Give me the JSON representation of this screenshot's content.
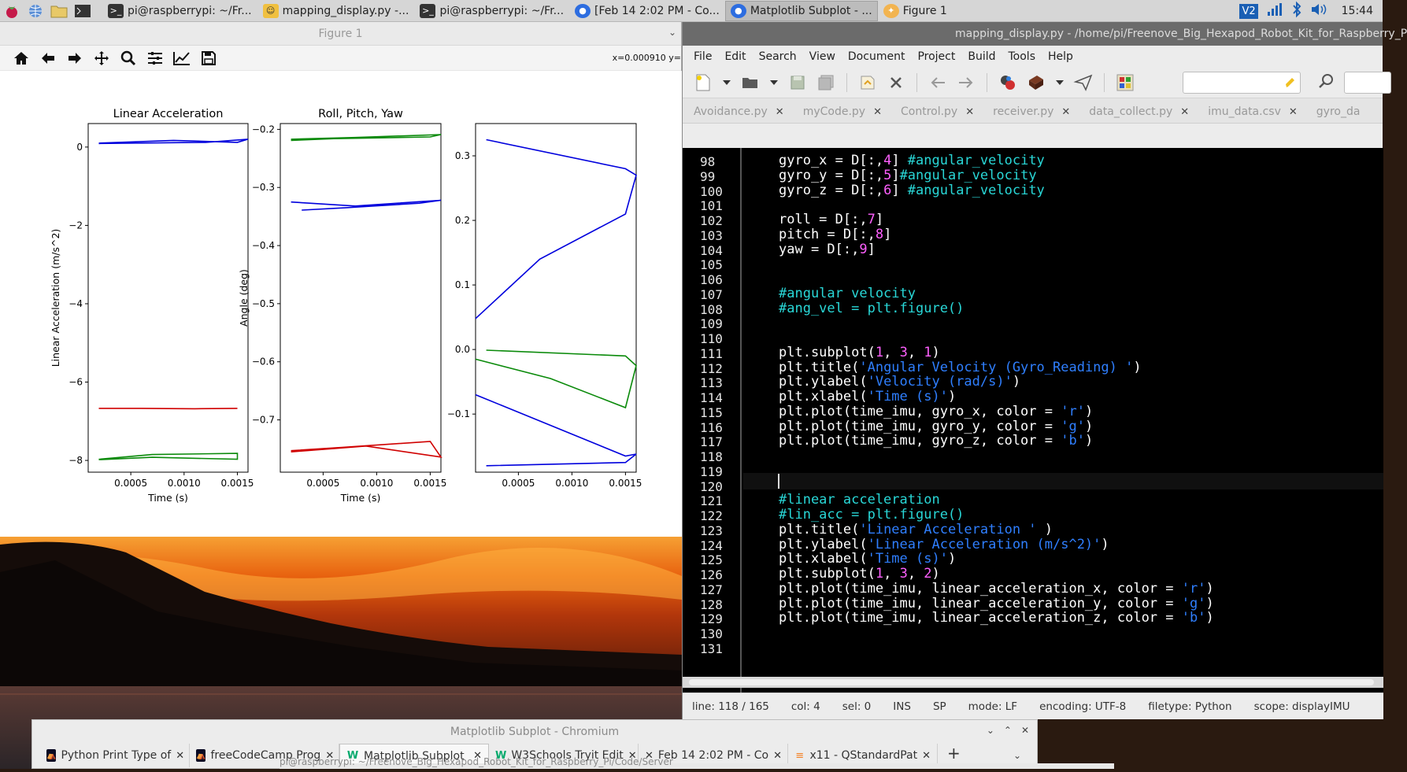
{
  "taskbar": {
    "buttons": [
      {
        "label": "pi@raspberrypi: ~/Fr...",
        "icon": "terminal-icon"
      },
      {
        "label": "mapping_display.py -...",
        "icon": "geany-icon"
      },
      {
        "label": "pi@raspberrypi: ~/Fr...",
        "icon": "terminal-icon"
      },
      {
        "label": "[Feb 14 2:02 PM - Co...",
        "icon": "chromium-icon"
      },
      {
        "label": "Matplotlib Subplot - ...",
        "icon": "chromium-icon"
      },
      {
        "label": "Figure 1",
        "icon": "matplotlib-icon"
      }
    ],
    "vnc_label": "V2",
    "clock": "15:44"
  },
  "figure": {
    "title": "Figure 1",
    "coord_readout": "x=0.000910 y=",
    "tools": [
      "home-icon",
      "back-icon",
      "forward-icon",
      "pan-icon",
      "zoom-icon",
      "configure-subplots-icon",
      "edit-axis-icon",
      "save-icon"
    ]
  },
  "chart_data": [
    {
      "type": "line",
      "title": "Linear Acceleration",
      "xlabel": "Time (s)",
      "ylabel": "Linear Acceleration (m/s^2)",
      "xlim": [
        0.0001,
        0.0016
      ],
      "ylim": [
        -8.3,
        0.6
      ],
      "xticks": [
        "0.0005",
        "0.0010",
        "0.0015"
      ],
      "yticks": [
        "0",
        "−2",
        "−4",
        "−6",
        "−8"
      ],
      "series": [
        {
          "color": "#d00000",
          "x": [
            0.0002,
            0.0006,
            0.0011,
            0.0015
          ],
          "values": [
            -6.67,
            -6.67,
            -6.68,
            -6.67
          ]
        },
        {
          "color": "#0a8a0a",
          "x": [
            0.0002,
            0.0007,
            0.0015,
            0.0015,
            0.0007,
            0.0002
          ],
          "values": [
            -7.97,
            -7.85,
            -7.82,
            -7.97,
            -7.92,
            -7.98
          ]
        },
        {
          "color": "#0000dd",
          "x": [
            0.0002,
            0.0009,
            0.0015,
            0.0016,
            0.0012,
            0.0002
          ],
          "values": [
            0.1,
            0.17,
            0.12,
            0.2,
            0.12,
            0.09
          ]
        }
      ]
    },
    {
      "type": "line",
      "title": "Roll, Pitch, Yaw",
      "xlabel": "Time (s)",
      "ylabel": "Angle (deg)",
      "xlim": [
        0.0001,
        0.0016
      ],
      "ylim": [
        -0.79,
        -0.19
      ],
      "xticks": [
        "0.0005",
        "0.0010",
        "0.0015"
      ],
      "yticks": [
        "−0.2",
        "−0.3",
        "−0.4",
        "−0.5",
        "−0.6",
        "−0.7"
      ],
      "series": [
        {
          "color": "#0a8a0a",
          "x": [
            0.0002,
            0.0008,
            0.0016,
            0.0015,
            0.0006,
            0.0002
          ],
          "values": [
            -0.217,
            -0.214,
            -0.209,
            -0.213,
            -0.216,
            -0.219
          ]
        },
        {
          "color": "#0000dd",
          "x": [
            0.0002,
            0.0008,
            0.0016,
            0.0014,
            0.0007,
            0.0003
          ],
          "values": [
            -0.325,
            -0.332,
            -0.322,
            -0.327,
            -0.335,
            -0.339
          ]
        },
        {
          "color": "#d00000",
          "x": [
            0.0002,
            0.0007,
            0.0015,
            0.0016,
            0.0009,
            0.0002
          ],
          "values": [
            -0.753,
            -0.747,
            -0.737,
            -0.764,
            -0.745,
            -0.755
          ]
        }
      ]
    },
    {
      "type": "line",
      "title": "",
      "xlabel": "",
      "ylabel": "",
      "xlim": [
        0.0001,
        0.0016
      ],
      "ylim": [
        -0.19,
        0.35
      ],
      "xticks": [
        "0.0005",
        "0.0010",
        "0.0015"
      ],
      "yticks": [
        "0.3",
        "0.2",
        "0.1",
        "0.0",
        "−0.1"
      ],
      "series": [
        {
          "color": "#0000dd",
          "x": [
            0.0002,
            0.0015,
            0.0016,
            0.0015,
            0.0007,
            0.0001
          ],
          "values": [
            0.325,
            0.28,
            0.27,
            0.21,
            0.14,
            0.048
          ]
        },
        {
          "color": "#0a8a0a",
          "x": [
            0.0002,
            0.0015,
            0.0016,
            0.0015,
            0.0008,
            0.0001
          ],
          "values": [
            -0.001,
            -0.01,
            -0.025,
            -0.09,
            -0.045,
            -0.015
          ]
        },
        {
          "color": "#0000dd",
          "x": [
            0.0001,
            0.0015,
            0.0016,
            0.0015,
            0.0002
          ],
          "values": [
            -0.07,
            -0.165,
            -0.162,
            -0.175,
            -0.18
          ]
        }
      ]
    }
  ],
  "editor": {
    "title": "mapping_display.py - /home/pi/Freenove_Big_Hexapod_Robot_Kit_for_Raspberry_P",
    "menu": [
      "File",
      "Edit",
      "Search",
      "View",
      "Document",
      "Project",
      "Build",
      "Tools",
      "Help"
    ],
    "search_value": "",
    "tabs": [
      {
        "label": "Avoidance.py"
      },
      {
        "label": "myCode.py"
      },
      {
        "label": "Control.py"
      },
      {
        "label": "receiver.py"
      },
      {
        "label": "data_collect.py"
      },
      {
        "label": "imu_data.csv"
      },
      {
        "label": "gyro_da"
      }
    ],
    "lines": [
      {
        "n": "98",
        "tokens": [
          [
            "w",
            "gyro_x = D[:,"
          ],
          [
            "n",
            "4"
          ],
          [
            "w",
            "] "
          ],
          [
            "c",
            "#angular_velocity"
          ]
        ]
      },
      {
        "n": "99",
        "tokens": [
          [
            "w",
            "gyro_y = D[:,"
          ],
          [
            "n",
            "5"
          ],
          [
            "w",
            "]"
          ],
          [
            "c",
            "#angular_velocity"
          ]
        ]
      },
      {
        "n": "100",
        "tokens": [
          [
            "w",
            "gyro_z = D[:,"
          ],
          [
            "n",
            "6"
          ],
          [
            "w",
            "] "
          ],
          [
            "c",
            "#angular_velocity"
          ]
        ]
      },
      {
        "n": "101",
        "tokens": []
      },
      {
        "n": "102",
        "tokens": [
          [
            "w",
            "roll = D[:,"
          ],
          [
            "n",
            "7"
          ],
          [
            "w",
            "]"
          ]
        ]
      },
      {
        "n": "103",
        "tokens": [
          [
            "w",
            "pitch = D[:,"
          ],
          [
            "n",
            "8"
          ],
          [
            "w",
            "]"
          ]
        ]
      },
      {
        "n": "104",
        "tokens": [
          [
            "w",
            "yaw = D[:,"
          ],
          [
            "n",
            "9"
          ],
          [
            "w",
            "]"
          ]
        ]
      },
      {
        "n": "105",
        "tokens": []
      },
      {
        "n": "106",
        "tokens": []
      },
      {
        "n": "107",
        "tokens": [
          [
            "c",
            "#angular velocity"
          ]
        ]
      },
      {
        "n": "108",
        "tokens": [
          [
            "c",
            "#ang_vel = plt.figure()"
          ]
        ]
      },
      {
        "n": "109",
        "tokens": []
      },
      {
        "n": "110",
        "tokens": []
      },
      {
        "n": "111",
        "tokens": [
          [
            "w",
            "plt.subplot("
          ],
          [
            "n",
            "1"
          ],
          [
            "w",
            ", "
          ],
          [
            "n",
            "3"
          ],
          [
            "w",
            ", "
          ],
          [
            "n",
            "1"
          ],
          [
            "w",
            ")"
          ]
        ]
      },
      {
        "n": "112",
        "tokens": [
          [
            "w",
            "plt.title("
          ],
          [
            "s",
            "'Angular Velocity (Gyro_Reading) '"
          ],
          [
            "w",
            ")"
          ]
        ]
      },
      {
        "n": "113",
        "tokens": [
          [
            "w",
            "plt.ylabel("
          ],
          [
            "s",
            "'Velocity (rad/s)'"
          ],
          [
            "w",
            ")"
          ]
        ]
      },
      {
        "n": "114",
        "tokens": [
          [
            "w",
            "plt.xlabel("
          ],
          [
            "s",
            "'Time (s)'"
          ],
          [
            "w",
            ")"
          ]
        ]
      },
      {
        "n": "115",
        "tokens": [
          [
            "w",
            "plt.plot(time_imu, gyro_x, color = "
          ],
          [
            "s",
            "'r'"
          ],
          [
            "w",
            ")"
          ]
        ]
      },
      {
        "n": "116",
        "tokens": [
          [
            "w",
            "plt.plot(time_imu, gyro_y, color = "
          ],
          [
            "s",
            "'g'"
          ],
          [
            "w",
            ")"
          ]
        ]
      },
      {
        "n": "117",
        "tokens": [
          [
            "w",
            "plt.plot(time_imu, gyro_z, color = "
          ],
          [
            "s",
            "'b'"
          ],
          [
            "w",
            ")"
          ]
        ]
      },
      {
        "n": "118",
        "tokens": []
      },
      {
        "n": "119",
        "tokens": []
      },
      {
        "n": "120",
        "tokens": []
      },
      {
        "n": "121",
        "tokens": [
          [
            "c",
            "#linear acceleration"
          ]
        ]
      },
      {
        "n": "122",
        "tokens": [
          [
            "c",
            "#lin_acc = plt.figure()"
          ]
        ]
      },
      {
        "n": "123",
        "tokens": [
          [
            "w",
            "plt.title("
          ],
          [
            "s",
            "'Linear Acceleration '"
          ],
          [
            "w",
            " )"
          ]
        ]
      },
      {
        "n": "124",
        "tokens": [
          [
            "w",
            "plt.ylabel("
          ],
          [
            "s",
            "'Linear Acceleration (m/s^2)'"
          ],
          [
            "w",
            ")"
          ]
        ]
      },
      {
        "n": "125",
        "tokens": [
          [
            "w",
            "plt.xlabel("
          ],
          [
            "s",
            "'Time (s)'"
          ],
          [
            "w",
            ")"
          ]
        ]
      },
      {
        "n": "126",
        "tokens": [
          [
            "w",
            "plt.subplot("
          ],
          [
            "n",
            "1"
          ],
          [
            "w",
            ", "
          ],
          [
            "n",
            "3"
          ],
          [
            "w",
            ", "
          ],
          [
            "n",
            "2"
          ],
          [
            "w",
            ")"
          ]
        ]
      },
      {
        "n": "127",
        "tokens": [
          [
            "w",
            "plt.plot(time_imu, linear_acceleration_x, color = "
          ],
          [
            "s",
            "'r'"
          ],
          [
            "w",
            ")"
          ]
        ]
      },
      {
        "n": "128",
        "tokens": [
          [
            "w",
            "plt.plot(time_imu, linear_acceleration_y, color = "
          ],
          [
            "s",
            "'g'"
          ],
          [
            "w",
            ")"
          ]
        ]
      },
      {
        "n": "129",
        "tokens": [
          [
            "w",
            "plt.plot(time_imu, linear_acceleration_z, color = "
          ],
          [
            "s",
            "'b'"
          ],
          [
            "w",
            ")"
          ]
        ]
      },
      {
        "n": "130",
        "tokens": []
      },
      {
        "n": "131",
        "tokens": []
      }
    ],
    "status": {
      "line": "line: 118 / 165",
      "col": "col: 4",
      "sel": "sel: 0",
      "ins": "INS",
      "sp": "SP",
      "mode": "mode: LF",
      "encoding": "encoding: UTF-8",
      "filetype": "filetype: Python",
      "scope": "scope: displayIMU"
    }
  },
  "chromium": {
    "title": "Matplotlib Subplot - Chromium",
    "tabs": [
      {
        "label": "Python Print Type of"
      },
      {
        "label": "freeCodeCamp Prog"
      },
      {
        "label": "Matplotlib Subplot"
      },
      {
        "label": "W3Schools Tryit Edit"
      },
      {
        "label": "Feb 14 2:02 PM - Co"
      },
      {
        "label": "x11 - QStandardPat"
      }
    ],
    "new_tab": "+"
  },
  "terminal_strip": "pi@raspberrypi: ~/Freenove_Big_Hexapod_Robot_Kit_for_Raspberry_Pi/Code/Server"
}
